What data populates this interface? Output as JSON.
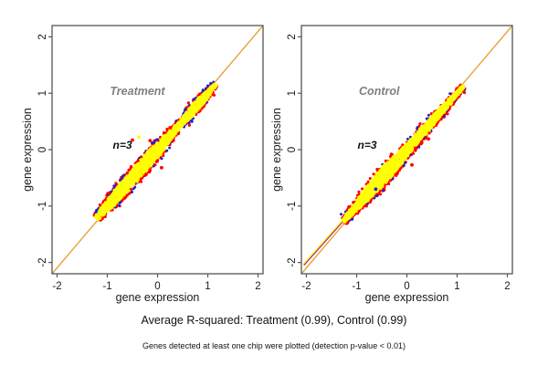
{
  "page": {
    "background": "#ffffff"
  },
  "captions": {
    "r_squared": "Average R-squared: Treatment (0.99), Control (0.99)",
    "note": "Genes detected at least one chip were plotted (detection p-value < 0.01)"
  },
  "style": {
    "reference_line_color": "#e8a33c",
    "core_color": "#ffff00",
    "red_color": "#ff0000",
    "blue_color": "#2222cc",
    "tail_overlay_color": "#b22878",
    "box_color": "#555555",
    "text_color": "#1a1a1a",
    "panel_title_color": "#808080"
  },
  "chart_data": [
    {
      "type": "scatter",
      "panel": "treatment",
      "title": "Treatment",
      "annotation": "n=3",
      "xlabel": "gene expression",
      "ylabel": "gene expression",
      "xlim": [
        -2.1,
        2.1
      ],
      "ylim": [
        -2.2,
        2.2
      ],
      "xticks": [
        -2,
        -1,
        0,
        1,
        2
      ],
      "yticks": [
        -2,
        -1,
        0,
        1,
        2
      ],
      "grid": false,
      "reference_line": "y = x",
      "r_squared": 0.99,
      "points_summary": "Dense yellow cloud of gene-expression replicate pairs hugging the identity line from about (-1.2,-1.2) to (1.15,1.15); red points rim both edges of the cloud and blue points appear sparsely at the outer rim.",
      "title_at": [
        -0.4,
        0.97
      ],
      "annotation_at": [
        -0.7,
        0.02
      ],
      "cloud": {
        "seed": 11,
        "n_core": 1700,
        "n_red": 250,
        "n_blue": 60,
        "t_range": [
          -1.22,
          1.16
        ],
        "base_width": 0.012,
        "bumps": [
          {
            "a": 0.09,
            "c": -0.75,
            "s": 0.22
          },
          {
            "a": 0.09,
            "c": -0.05,
            "s": 0.18
          },
          {
            "a": 0.065,
            "c": 0.78,
            "s": 0.1
          }
        ],
        "red_below_fraction": 0.5
      },
      "outliers": [
        {
          "x": -0.5,
          "y": 0.17,
          "color": "#ff0000"
        },
        {
          "x": -0.37,
          "y": 0.22,
          "color": "#ffff00"
        },
        {
          "x": -0.15,
          "y": 0.16,
          "color": "#ff0000"
        },
        {
          "x": -0.23,
          "y": -0.44,
          "color": "#ff0000"
        },
        {
          "x": 0.08,
          "y": -0.32,
          "color": "#ff0000"
        }
      ]
    },
    {
      "type": "scatter",
      "panel": "control",
      "title": "Control",
      "annotation": "n=3",
      "xlabel": "gene expression",
      "ylabel": "gene expression",
      "xlim": [
        -2.1,
        2.1
      ],
      "ylim": [
        -2.2,
        2.2
      ],
      "xticks": [
        -2,
        -1,
        0,
        1,
        2
      ],
      "yticks": [
        -2,
        -1,
        0,
        1,
        2
      ],
      "grid": false,
      "reference_line": "y = x",
      "r_squared": 0.99,
      "points_summary": "Dense yellow cloud along the identity line from about (-1.25,-1.25) to (1.13,1.13); red points concentrate along the lower edge of the cloud; the identity-line tail below the cloud is overplotted red/magenta with a thin yellow streak.",
      "title_at": [
        -0.55,
        0.97
      ],
      "annotation_at": [
        -0.79,
        0.02
      ],
      "cloud": {
        "seed": 23,
        "n_core": 1850,
        "n_red": 330,
        "n_blue": 28,
        "t_range": [
          -1.27,
          1.13
        ],
        "base_width": 0.012,
        "bumps": [
          {
            "a": 0.115,
            "c": -0.5,
            "s": 0.35
          },
          {
            "a": 0.05,
            "c": 0.55,
            "s": 0.25
          }
        ],
        "red_below_fraction": 0.78,
        "tail_overlay": [
          -2.05,
          -1.28
        ]
      },
      "outliers": [
        {
          "x": 0.1,
          "y": -0.27,
          "color": "#ff0000"
        },
        {
          "x": 0.43,
          "y": 0.19,
          "color": "#ff0000"
        },
        {
          "x": -0.62,
          "y": -0.7,
          "color": "#2222cc"
        }
      ]
    }
  ]
}
